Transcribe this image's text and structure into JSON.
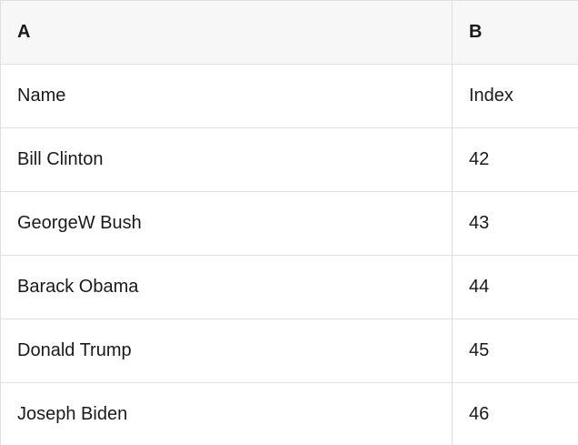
{
  "table": {
    "column_headers": [
      "A",
      "B"
    ],
    "rows": [
      [
        "Name",
        "Index"
      ],
      [
        "Bill Clinton",
        "42"
      ],
      [
        "GeorgeW Bush",
        "43"
      ],
      [
        "Barack Obama",
        "44"
      ],
      [
        "Donald Trump",
        "45"
      ],
      [
        "Joseph Biden",
        "46"
      ]
    ]
  },
  "colors": {
    "header_bg": "#f7f7f7",
    "border": "#e0e0e0",
    "text": "#1a1a1a",
    "cell_bg": "#ffffff"
  }
}
